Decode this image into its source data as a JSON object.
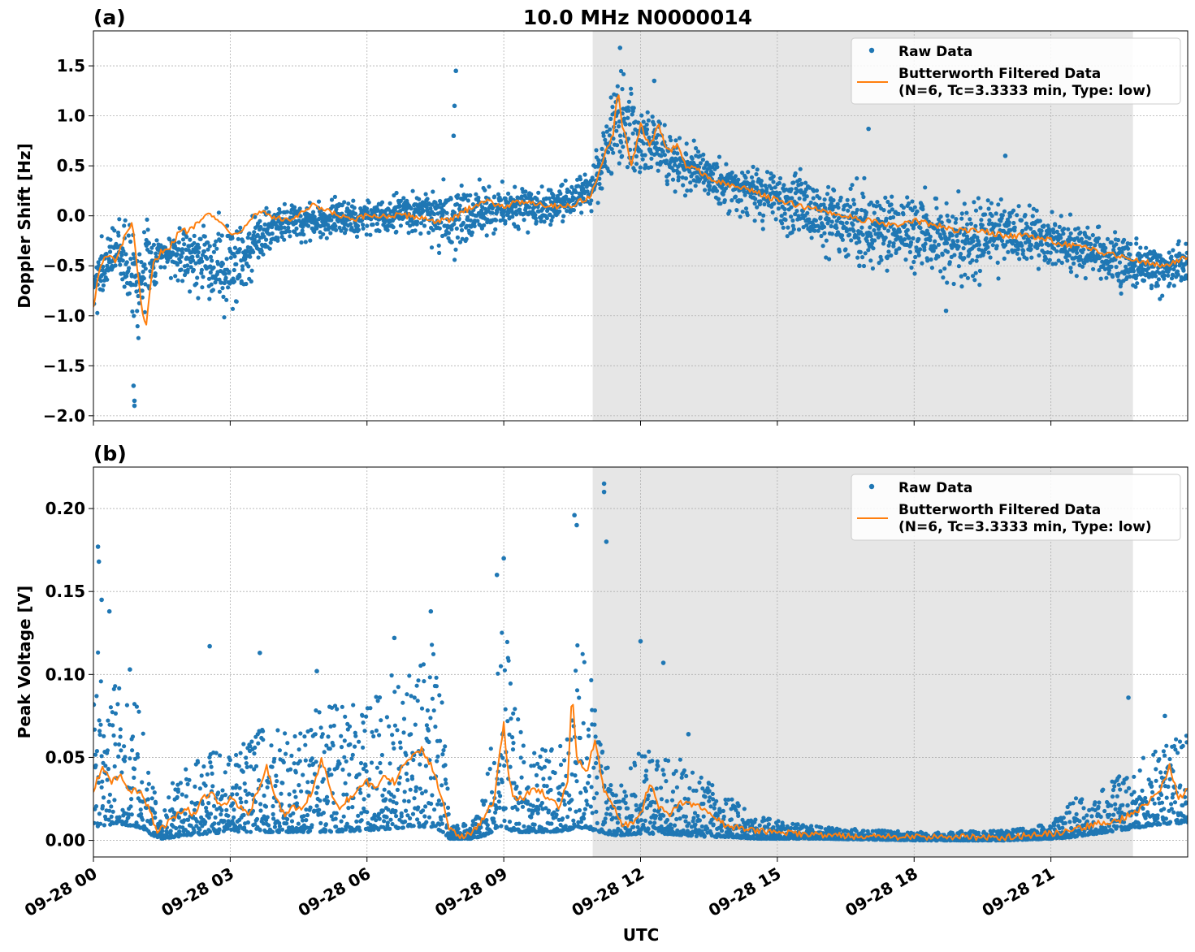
{
  "figure": {
    "title": "10.0 MHz N0000014",
    "xlabel": "UTC",
    "x_tick_labels": [
      "09-28 00",
      "09-28 03",
      "09-28 06",
      "09-28 09",
      "09-28 12",
      "09-28 15",
      "09-28 18",
      "09-28 21"
    ],
    "legend": {
      "raw": "Raw Data",
      "filtered_line1": "Butterworth Filtered Data",
      "filtered_line2": "(N=6, Tc=3.3333 min, Type: low)"
    },
    "colors": {
      "raw": "#1f77b4",
      "filtered": "#ff7f0e",
      "shade": "#e6e6e6",
      "grid": "#b0b0b0"
    }
  },
  "chart_data": [
    {
      "type": "scatter",
      "panel_label": "(a)",
      "title": "10.0 MHz N0000014",
      "ylabel": "Doppler Shift [Hz]",
      "xlabel": "",
      "x_unit": "hours UTC on 09-28",
      "xlim": [
        0,
        24
      ],
      "ylim": [
        -2.05,
        1.85
      ],
      "y_ticks": [
        -2.0,
        -1.5,
        -1.0,
        -0.5,
        0.0,
        0.5,
        1.0,
        1.5
      ],
      "y_tick_labels": [
        "−2.0",
        "−1.5",
        "−1.0",
        "−0.5",
        "0.0",
        "0.5",
        "1.0",
        "1.5"
      ],
      "grid": true,
      "legend_position": "top-right",
      "shaded_x_range": [
        10.95,
        22.8
      ],
      "series": [
        {
          "name": "Butterworth Filtered Data (N=6, Tc=3.3333 min, Type: low)",
          "kind": "line",
          "x": [
            0,
            0.15,
            0.3,
            0.5,
            0.7,
            0.85,
            0.95,
            1.05,
            1.15,
            1.3,
            1.5,
            1.7,
            1.9,
            2.1,
            2.3,
            2.5,
            2.7,
            2.9,
            3.1,
            3.3,
            3.5,
            3.7,
            3.9,
            4.2,
            4.5,
            4.8,
            5.1,
            5.4,
            5.7,
            6.0,
            6.5,
            7.0,
            7.5,
            7.8,
            8.0,
            8.3,
            8.6,
            9.0,
            9.5,
            10.0,
            10.5,
            10.9,
            11.0,
            11.2,
            11.4,
            11.5,
            11.6,
            11.7,
            11.8,
            12.0,
            12.2,
            12.4,
            12.6,
            12.8,
            13.0,
            13.3,
            13.6,
            14.0,
            14.5,
            15.0,
            15.5,
            16.0,
            16.5,
            17.0,
            17.5,
            18.0,
            18.5,
            19.0,
            19.5,
            20.0,
            20.5,
            21.0,
            21.5,
            22.0,
            22.5,
            23.0,
            23.5,
            23.8,
            24.0
          ],
          "y": [
            -0.9,
            -0.5,
            -0.4,
            -0.45,
            -0.2,
            -0.05,
            -0.5,
            -0.9,
            -1.15,
            -0.5,
            -0.35,
            -0.3,
            -0.15,
            -0.15,
            -0.05,
            0.05,
            -0.05,
            -0.1,
            -0.2,
            -0.1,
            0.0,
            0.05,
            0.0,
            -0.05,
            0.0,
            0.1,
            0.05,
            0.0,
            -0.05,
            0.0,
            0.0,
            0.0,
            -0.05,
            -0.05,
            0.0,
            0.1,
            0.15,
            0.1,
            0.15,
            0.1,
            0.1,
            0.2,
            0.3,
            0.6,
            0.8,
            1.25,
            0.9,
            0.75,
            0.5,
            0.9,
            0.7,
            0.9,
            0.65,
            0.7,
            0.5,
            0.45,
            0.35,
            0.3,
            0.25,
            0.15,
            0.1,
            0.05,
            0.0,
            -0.05,
            -0.1,
            -0.05,
            -0.1,
            -0.15,
            -0.15,
            -0.2,
            -0.2,
            -0.25,
            -0.3,
            -0.35,
            -0.4,
            -0.45,
            -0.5,
            -0.45,
            -0.4
          ]
        },
        {
          "name": "Raw Data",
          "kind": "points",
          "band": {
            "x": [
              0,
              0.5,
              1.0,
              1.5,
              2.0,
              3.0,
              4.0,
              5.0,
              6.0,
              7.0,
              8.0,
              9.0,
              10.0,
              10.9,
              11.5,
              12.0,
              13.0,
              14.0,
              15.0,
              16.0,
              17.0,
              18.0,
              19.0,
              20.0,
              21.0,
              22.0,
              23.0,
              24.0
            ],
            "high": [
              -0.2,
              0.0,
              0.15,
              -0.1,
              0.0,
              0.1,
              0.15,
              0.2,
              0.2,
              0.25,
              0.45,
              0.35,
              0.35,
              0.5,
              1.6,
              1.3,
              0.8,
              0.6,
              0.5,
              0.45,
              0.4,
              0.3,
              0.3,
              0.2,
              0.1,
              0.0,
              -0.2,
              -0.2
            ],
            "low": [
              -1.3,
              -0.6,
              -1.4,
              -0.6,
              -0.8,
              -1.1,
              -0.35,
              -0.3,
              -0.25,
              -0.2,
              -0.5,
              -0.2,
              -0.15,
              0.0,
              0.4,
              0.25,
              0.2,
              0.0,
              -0.2,
              -0.5,
              -0.6,
              -0.7,
              -0.8,
              -0.6,
              -0.6,
              -0.7,
              -0.9,
              -0.8
            ]
          },
          "outliers": [
            {
              "x": 0.9,
              "y": -1.9
            },
            {
              "x": 0.9,
              "y": -1.85
            },
            {
              "x": 0.88,
              "y": -1.7
            },
            {
              "x": 7.95,
              "y": 1.45
            },
            {
              "x": 7.92,
              "y": 1.1
            },
            {
              "x": 7.9,
              "y": 0.8
            },
            {
              "x": 11.55,
              "y": 1.68
            },
            {
              "x": 12.3,
              "y": 1.35
            },
            {
              "x": 17.0,
              "y": 0.87
            },
            {
              "x": 16.8,
              "y": -0.5
            },
            {
              "x": 18.7,
              "y": -0.95
            },
            {
              "x": 20.0,
              "y": 0.6
            }
          ]
        }
      ]
    },
    {
      "type": "scatter",
      "panel_label": "(b)",
      "title": "",
      "ylabel": "Peak Voltage [V]",
      "xlabel": "UTC",
      "x_unit": "hours UTC on 09-28",
      "xlim": [
        0,
        24
      ],
      "ylim": [
        -0.01,
        0.225
      ],
      "y_ticks": [
        0.0,
        0.05,
        0.1,
        0.15,
        0.2
      ],
      "y_tick_labels": [
        "0.00",
        "0.05",
        "0.10",
        "0.15",
        "0.20"
      ],
      "grid": true,
      "legend_position": "top-right",
      "shaded_x_range": [
        10.95,
        22.8
      ],
      "series": [
        {
          "name": "Butterworth Filtered Data (N=6, Tc=3.3333 min, Type: low)",
          "kind": "line",
          "x": [
            0,
            0.2,
            0.4,
            0.6,
            0.8,
            1.0,
            1.2,
            1.4,
            1.6,
            1.8,
            2.0,
            2.2,
            2.4,
            2.6,
            2.8,
            3.0,
            3.2,
            3.4,
            3.6,
            3.8,
            4.0,
            4.2,
            4.4,
            4.6,
            4.8,
            5.0,
            5.2,
            5.4,
            5.6,
            5.8,
            6.0,
            6.2,
            6.4,
            6.6,
            6.8,
            7.0,
            7.2,
            7.4,
            7.6,
            7.8,
            8.0,
            8.2,
            8.4,
            8.6,
            8.8,
            8.9,
            9.0,
            9.1,
            9.2,
            9.4,
            9.6,
            9.8,
            10.0,
            10.2,
            10.4,
            10.5,
            10.6,
            10.8,
            11.0,
            11.2,
            11.4,
            11.6,
            11.8,
            12.0,
            12.2,
            12.4,
            12.6,
            12.8,
            13.0,
            13.2,
            13.4,
            13.6,
            13.8,
            14.0,
            14.5,
            15.0,
            16.0,
            17.0,
            18.0,
            19.0,
            20.0,
            21.0,
            21.5,
            22.0,
            22.5,
            23.0,
            23.4,
            23.6,
            23.8,
            24.0
          ],
          "y": [
            0.03,
            0.045,
            0.035,
            0.04,
            0.03,
            0.03,
            0.02,
            0.005,
            0.01,
            0.015,
            0.02,
            0.015,
            0.025,
            0.03,
            0.02,
            0.025,
            0.02,
            0.015,
            0.03,
            0.045,
            0.025,
            0.015,
            0.02,
            0.02,
            0.03,
            0.05,
            0.03,
            0.02,
            0.025,
            0.03,
            0.035,
            0.03,
            0.04,
            0.035,
            0.045,
            0.05,
            0.055,
            0.045,
            0.03,
            0.007,
            0.003,
            0.003,
            0.008,
            0.015,
            0.025,
            0.05,
            0.07,
            0.04,
            0.025,
            0.025,
            0.03,
            0.03,
            0.025,
            0.02,
            0.035,
            0.09,
            0.05,
            0.04,
            0.06,
            0.03,
            0.02,
            0.01,
            0.01,
            0.015,
            0.035,
            0.02,
            0.015,
            0.02,
            0.025,
            0.02,
            0.02,
            0.015,
            0.01,
            0.008,
            0.006,
            0.005,
            0.003,
            0.002,
            0.002,
            0.002,
            0.002,
            0.004,
            0.006,
            0.01,
            0.012,
            0.02,
            0.03,
            0.045,
            0.025,
            0.03
          ]
        },
        {
          "name": "Raw Data",
          "kind": "points",
          "band": {
            "x": [
              0,
              0.5,
              1.0,
              1.3,
              1.5,
              1.8,
              2.0,
              3.0,
              4.0,
              5.0,
              6.0,
              6.5,
              7.0,
              7.5,
              7.7,
              7.8,
              8.3,
              8.6,
              8.8,
              9.0,
              9.2,
              9.5,
              10.0,
              10.4,
              10.6,
              11.0,
              11.2,
              11.5,
              12.0,
              12.5,
              13.0,
              13.5,
              14.0,
              14.5,
              15.0,
              16.0,
              18.0,
              20.0,
              21.0,
              21.5,
              22.0,
              22.5,
              23.0,
              23.5,
              24.0
            ],
            "high": [
              0.12,
              0.1,
              0.08,
              0.04,
              0.015,
              0.04,
              0.045,
              0.06,
              0.07,
              0.08,
              0.085,
              0.1,
              0.11,
              0.12,
              0.08,
              0.01,
              0.01,
              0.03,
              0.08,
              0.14,
              0.09,
              0.05,
              0.06,
              0.07,
              0.12,
              0.1,
              0.05,
              0.03,
              0.06,
              0.05,
              0.05,
              0.035,
              0.025,
              0.015,
              0.012,
              0.008,
              0.005,
              0.006,
              0.01,
              0.025,
              0.03,
              0.04,
              0.05,
              0.06,
              0.065
            ],
            "low": [
              0.008,
              0.01,
              0.008,
              0.003,
              0.001,
              0.002,
              0.003,
              0.005,
              0.005,
              0.005,
              0.006,
              0.007,
              0.008,
              0.008,
              0.004,
              0.001,
              0.001,
              0.003,
              0.006,
              0.008,
              0.005,
              0.005,
              0.005,
              0.006,
              0.008,
              0.006,
              0.004,
              0.003,
              0.004,
              0.004,
              0.003,
              0.002,
              0.002,
              0.001,
              0.001,
              0.001,
              0.0,
              0.0,
              0.001,
              0.002,
              0.004,
              0.006,
              0.008,
              0.01,
              0.01
            ]
          },
          "outliers": [
            {
              "x": 0.1,
              "y": 0.177
            },
            {
              "x": 0.12,
              "y": 0.168
            },
            {
              "x": 0.18,
              "y": 0.145
            },
            {
              "x": 0.35,
              "y": 0.138
            },
            {
              "x": 0.8,
              "y": 0.103
            },
            {
              "x": 2.55,
              "y": 0.117
            },
            {
              "x": 3.65,
              "y": 0.113
            },
            {
              "x": 4.9,
              "y": 0.102
            },
            {
              "x": 6.6,
              "y": 0.122
            },
            {
              "x": 7.4,
              "y": 0.138
            },
            {
              "x": 8.85,
              "y": 0.16
            },
            {
              "x": 9.0,
              "y": 0.17
            },
            {
              "x": 10.55,
              "y": 0.196
            },
            {
              "x": 10.6,
              "y": 0.19
            },
            {
              "x": 11.2,
              "y": 0.215
            },
            {
              "x": 11.2,
              "y": 0.21
            },
            {
              "x": 11.25,
              "y": 0.18
            },
            {
              "x": 12.0,
              "y": 0.12
            },
            {
              "x": 12.5,
              "y": 0.107
            },
            {
              "x": 13.05,
              "y": 0.064
            },
            {
              "x": 22.7,
              "y": 0.086
            },
            {
              "x": 23.5,
              "y": 0.075
            }
          ]
        }
      ]
    }
  ]
}
